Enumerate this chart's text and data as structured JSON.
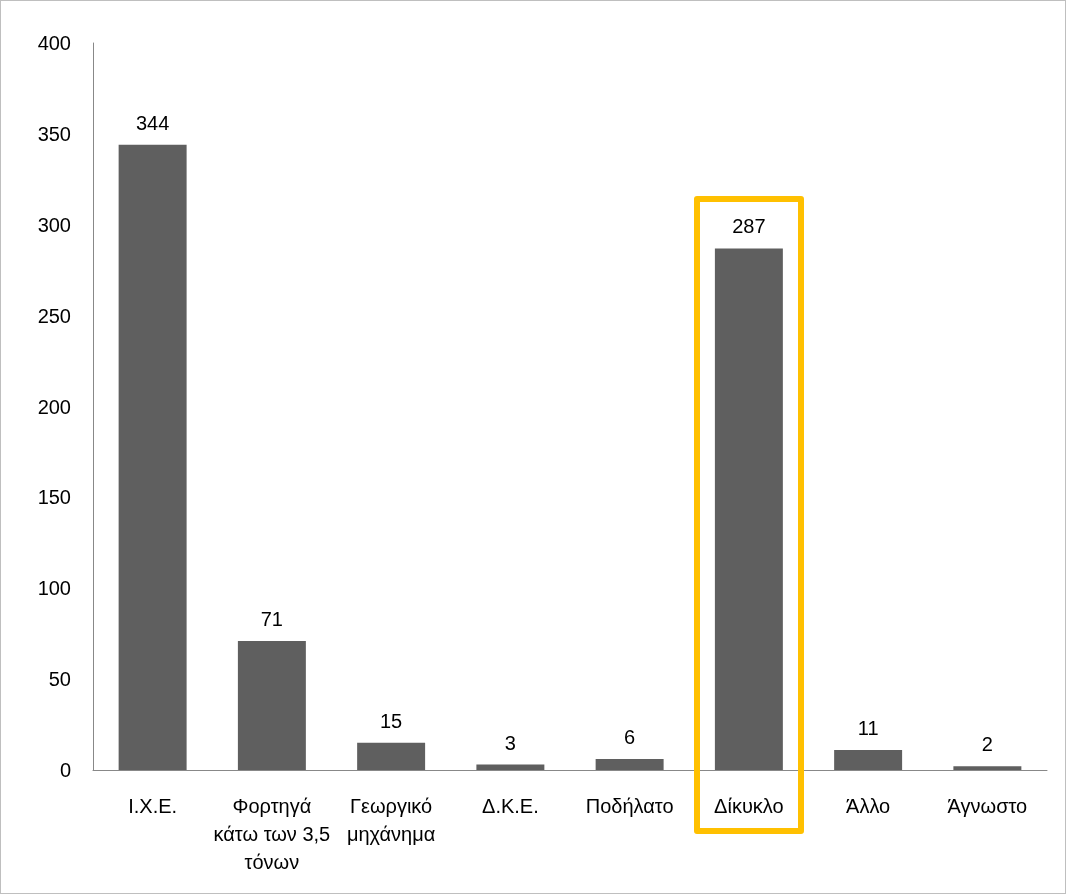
{
  "chart_data": {
    "type": "bar",
    "categories": [
      "Ι.Χ.Ε.",
      "Φορτηγά κάτω των 3,5 τόνων",
      "Γεωργικό μηχάνημα",
      "Δ.Κ.Ε.",
      "Ποδήλατο",
      "Δίκυκλο",
      "Άλλο",
      "Άγνωστο"
    ],
    "values": [
      344,
      71,
      15,
      3,
      6,
      287,
      11,
      2
    ],
    "color": "#5f5f5f",
    "ylim": [
      0,
      400
    ],
    "yticks": [
      0,
      50,
      100,
      150,
      200,
      250,
      300,
      350,
      400
    ],
    "grid": false,
    "data_labels": true
  }
}
